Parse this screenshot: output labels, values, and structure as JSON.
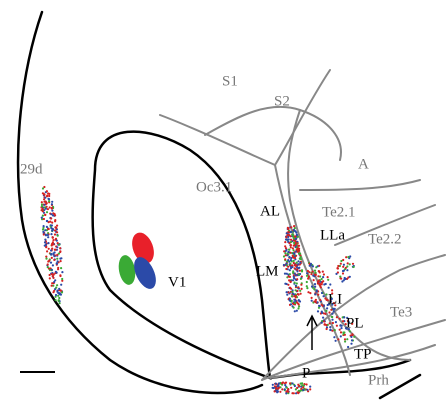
{
  "labels": {
    "s1": "S1",
    "s2": "S2",
    "a": "A",
    "area29d": "29d",
    "oc31": "Oc3.1",
    "te21": "Te2.1",
    "te22": "Te2.2",
    "al": "AL",
    "lla": "LLa",
    "lm": "LM",
    "v1": "V1",
    "li": "LI",
    "pl": "PL",
    "te3": "Te3",
    "tp": "TP",
    "p": "P",
    "prh": "Prh"
  }
}
